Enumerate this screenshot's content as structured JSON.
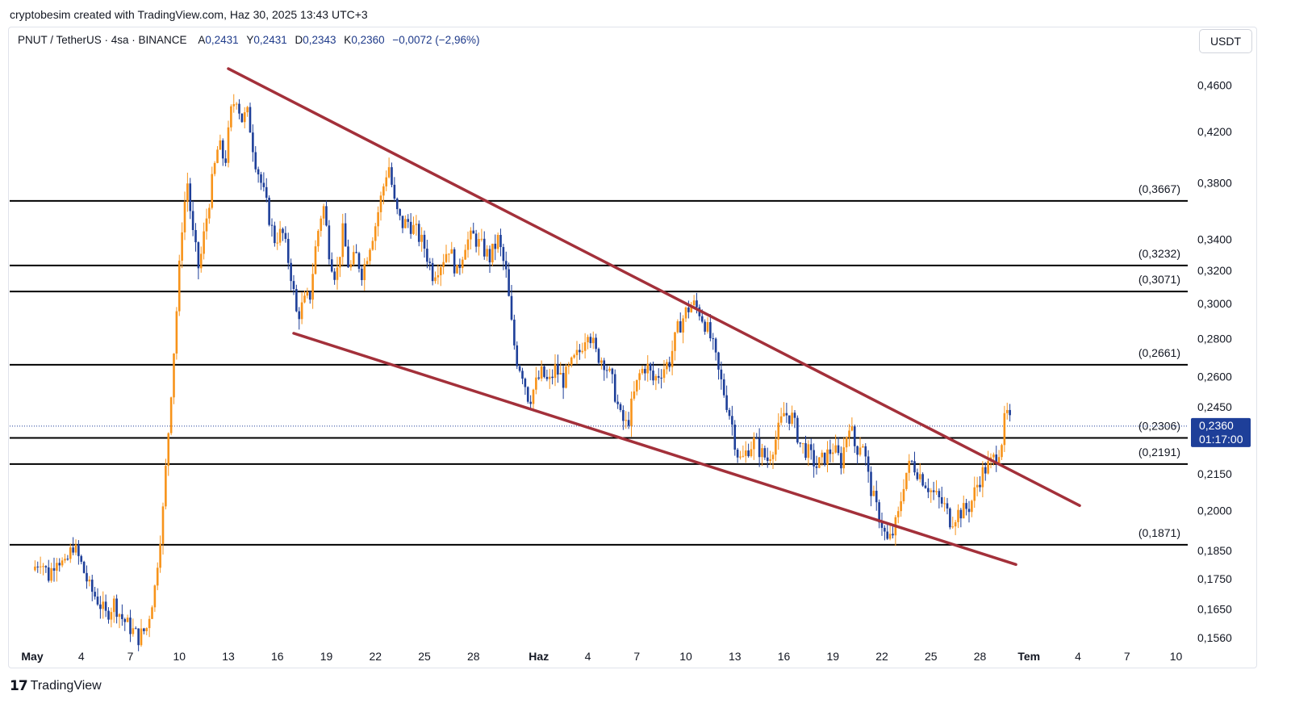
{
  "header": {
    "credit": "cryptobesim created with TradingView.com, Haz 30, 2025 13:43 UTC+3",
    "symbol": "PNUT / TetherUS · 4sa · BINANCE",
    "open_label": "A",
    "open": "0,2431",
    "high_label": "Y",
    "high": "0,2431",
    "low_label": "D",
    "low": "0,2343",
    "close_label": "K",
    "close": "0,2360",
    "change": "−0,0072 (−2,96%)",
    "currency": "USDT"
  },
  "footer": {
    "brand": "TradingView"
  },
  "colors": {
    "bull": "#f7931a",
    "bear": "#1e3f99",
    "trendline": "#a3303a",
    "level": "#000000",
    "price_tag": "#1e3f99"
  },
  "chart_data": {
    "type": "candlestick",
    "title": "PNUT / TetherUS · 4sa · BINANCE",
    "scale": "log",
    "ylim": [
      0.1545,
      0.488
    ],
    "y_ticks": [
      {
        "value": 0.46,
        "label": "0,4600"
      },
      {
        "value": 0.42,
        "label": "0,4200"
      },
      {
        "value": 0.38,
        "label": "0,3800"
      },
      {
        "value": 0.34,
        "label": "0,3400"
      },
      {
        "value": 0.32,
        "label": "0,3200"
      },
      {
        "value": 0.3,
        "label": "0,3000"
      },
      {
        "value": 0.28,
        "label": "0,2800"
      },
      {
        "value": 0.26,
        "label": "0,2600"
      },
      {
        "value": 0.245,
        "label": "0,2450"
      },
      {
        "value": 0.215,
        "label": "0,2150"
      },
      {
        "value": 0.2,
        "label": "0,2000"
      },
      {
        "value": 0.185,
        "label": "0,1850"
      },
      {
        "value": 0.175,
        "label": "0,1750"
      },
      {
        "value": 0.165,
        "label": "0,1650"
      },
      {
        "value": 0.156,
        "label": "0,1560"
      }
    ],
    "x_ticks": [
      {
        "day": 1,
        "label": "May",
        "bold": true
      },
      {
        "day": 4,
        "label": "4"
      },
      {
        "day": 7,
        "label": "7"
      },
      {
        "day": 10,
        "label": "10"
      },
      {
        "day": 13,
        "label": "13"
      },
      {
        "day": 16,
        "label": "16"
      },
      {
        "day": 19,
        "label": "19"
      },
      {
        "day": 22,
        "label": "22"
      },
      {
        "day": 25,
        "label": "25"
      },
      {
        "day": 28,
        "label": "28"
      },
      {
        "day": 32,
        "label": "Haz",
        "bold": true
      },
      {
        "day": 35,
        "label": "4"
      },
      {
        "day": 38,
        "label": "7"
      },
      {
        "day": 41,
        "label": "10"
      },
      {
        "day": 44,
        "label": "13"
      },
      {
        "day": 47,
        "label": "16"
      },
      {
        "day": 50,
        "label": "19"
      },
      {
        "day": 53,
        "label": "22"
      },
      {
        "day": 56,
        "label": "25"
      },
      {
        "day": 59,
        "label": "28"
      },
      {
        "day": 62,
        "label": "Tem",
        "bold": true
      },
      {
        "day": 65,
        "label": "4"
      },
      {
        "day": 68,
        "label": "7"
      },
      {
        "day": 71,
        "label": "10"
      }
    ],
    "levels": [
      {
        "value": 0.3667,
        "label": "(0,3667)"
      },
      {
        "value": 0.3232,
        "label": "(0,3232)"
      },
      {
        "value": 0.3071,
        "label": "(0,3071)"
      },
      {
        "value": 0.2661,
        "label": "(0,2661)"
      },
      {
        "value": 0.2306,
        "label": "(0,2306)"
      },
      {
        "value": 0.2191,
        "label": "(0,2191)"
      },
      {
        "value": 0.1871,
        "label": "(0,1871)"
      }
    ],
    "trendlines": [
      {
        "name": "upper",
        "from": {
          "day": 13.0,
          "price": 0.475
        },
        "to": {
          "day": 65.1,
          "price": 0.202
        }
      },
      {
        "name": "lower",
        "from": {
          "day": 17.0,
          "price": 0.283
        },
        "to": {
          "day": 61.2,
          "price": 0.18
        }
      }
    ],
    "last_price": {
      "value": 0.236,
      "label": "0,2360",
      "countdown": "01:17:00"
    },
    "price_path": [
      [
        1.0,
        0.178
      ],
      [
        1.5,
        0.182
      ],
      [
        2.0,
        0.176
      ],
      [
        2.5,
        0.183
      ],
      [
        3.0,
        0.179
      ],
      [
        3.5,
        0.187
      ],
      [
        4.0,
        0.18
      ],
      [
        4.5,
        0.172
      ],
      [
        5.0,
        0.168
      ],
      [
        5.5,
        0.163
      ],
      [
        6.0,
        0.167
      ],
      [
        6.5,
        0.162
      ],
      [
        7.0,
        0.159
      ],
      [
        7.5,
        0.156
      ],
      [
        8.0,
        0.159
      ],
      [
        8.5,
        0.172
      ],
      [
        9.0,
        0.2
      ],
      [
        9.3,
        0.23
      ],
      [
        9.6,
        0.265
      ],
      [
        9.9,
        0.305
      ],
      [
        10.2,
        0.355
      ],
      [
        10.5,
        0.38
      ],
      [
        10.8,
        0.345
      ],
      [
        11.2,
        0.32
      ],
      [
        11.6,
        0.35
      ],
      [
        12.0,
        0.38
      ],
      [
        12.4,
        0.41
      ],
      [
        12.8,
        0.395
      ],
      [
        13.2,
        0.44
      ],
      [
        13.5,
        0.45
      ],
      [
        13.8,
        0.43
      ],
      [
        14.2,
        0.435
      ],
      [
        14.6,
        0.4
      ],
      [
        15.0,
        0.38
      ],
      [
        15.4,
        0.36
      ],
      [
        15.8,
        0.34
      ],
      [
        16.3,
        0.345
      ],
      [
        16.8,
        0.32
      ],
      [
        17.2,
        0.292
      ],
      [
        17.6,
        0.3
      ],
      [
        18.0,
        0.305
      ],
      [
        18.4,
        0.34
      ],
      [
        18.8,
        0.365
      ],
      [
        19.2,
        0.33
      ],
      [
        19.6,
        0.315
      ],
      [
        20.0,
        0.345
      ],
      [
        20.4,
        0.32
      ],
      [
        20.8,
        0.33
      ],
      [
        21.2,
        0.318
      ],
      [
        21.6,
        0.335
      ],
      [
        22.0,
        0.35
      ],
      [
        22.4,
        0.372
      ],
      [
        22.8,
        0.395
      ],
      [
        23.2,
        0.362
      ],
      [
        23.6,
        0.35
      ],
      [
        24.0,
        0.352
      ],
      [
        24.5,
        0.345
      ],
      [
        25.0,
        0.335
      ],
      [
        25.5,
        0.318
      ],
      [
        26.0,
        0.325
      ],
      [
        26.5,
        0.335
      ],
      [
        27.0,
        0.318
      ],
      [
        27.5,
        0.338
      ],
      [
        28.0,
        0.342
      ],
      [
        28.5,
        0.335
      ],
      [
        29.0,
        0.328
      ],
      [
        29.5,
        0.34
      ],
      [
        30.0,
        0.318
      ],
      [
        30.3,
        0.29
      ],
      [
        30.6,
        0.27
      ],
      [
        31.0,
        0.262
      ],
      [
        31.4,
        0.248
      ],
      [
        31.8,
        0.256
      ],
      [
        32.2,
        0.262
      ],
      [
        32.6,
        0.256
      ],
      [
        33.0,
        0.264
      ],
      [
        33.5,
        0.258
      ],
      [
        34.0,
        0.266
      ],
      [
        34.5,
        0.273
      ],
      [
        35.0,
        0.286
      ],
      [
        35.5,
        0.272
      ],
      [
        36.0,
        0.268
      ],
      [
        36.5,
        0.257
      ],
      [
        37.0,
        0.24
      ],
      [
        37.4,
        0.236
      ],
      [
        37.8,
        0.25
      ],
      [
        38.2,
        0.262
      ],
      [
        38.6,
        0.266
      ],
      [
        39.0,
        0.258
      ],
      [
        39.5,
        0.263
      ],
      [
        40.0,
        0.268
      ],
      [
        40.5,
        0.285
      ],
      [
        41.0,
        0.295
      ],
      [
        41.4,
        0.3
      ],
      [
        41.8,
        0.296
      ],
      [
        42.2,
        0.288
      ],
      [
        42.6,
        0.278
      ],
      [
        43.0,
        0.262
      ],
      [
        43.4,
        0.25
      ],
      [
        43.8,
        0.238
      ],
      [
        44.1,
        0.225
      ],
      [
        44.4,
        0.22
      ],
      [
        44.8,
        0.226
      ],
      [
        45.2,
        0.229
      ],
      [
        45.6,
        0.224
      ],
      [
        46.0,
        0.221
      ],
      [
        46.5,
        0.23
      ],
      [
        47.0,
        0.242
      ],
      [
        47.5,
        0.24
      ],
      [
        48.0,
        0.228
      ],
      [
        48.5,
        0.224
      ],
      [
        49.0,
        0.218
      ],
      [
        49.5,
        0.222
      ],
      [
        50.0,
        0.226
      ],
      [
        50.5,
        0.22
      ],
      [
        51.0,
        0.238
      ],
      [
        51.4,
        0.225
      ],
      [
        51.8,
        0.23
      ],
      [
        52.2,
        0.212
      ],
      [
        52.6,
        0.202
      ],
      [
        53.0,
        0.195
      ],
      [
        53.3,
        0.188
      ],
      [
        53.6,
        0.19
      ],
      [
        54.0,
        0.198
      ],
      [
        54.4,
        0.214
      ],
      [
        54.8,
        0.22
      ],
      [
        55.2,
        0.216
      ],
      [
        55.6,
        0.212
      ],
      [
        56.0,
        0.208
      ],
      [
        56.4,
        0.205
      ],
      [
        56.8,
        0.202
      ],
      [
        57.2,
        0.196
      ],
      [
        57.6,
        0.199
      ],
      [
        58.0,
        0.2
      ],
      [
        58.4,
        0.202
      ],
      [
        58.8,
        0.21
      ],
      [
        59.2,
        0.216
      ],
      [
        59.6,
        0.219
      ],
      [
        60.0,
        0.223
      ],
      [
        60.3,
        0.228
      ],
      [
        60.6,
        0.243
      ],
      [
        60.9,
        0.236
      ]
    ]
  }
}
